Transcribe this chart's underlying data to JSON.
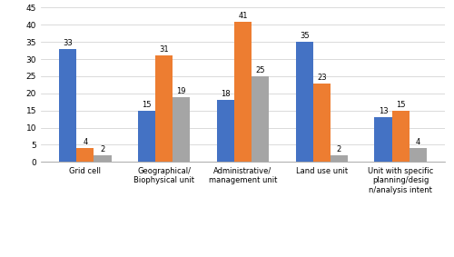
{
  "categories": [
    "Grid cell",
    "Geographical/\nBiophysical unit",
    "Administrative/\nmanagement unit",
    "Land use unit",
    "Unit with specific\nplanning/desig\nn/analysis intent"
  ],
  "minimal_unit": [
    33,
    15,
    18,
    35,
    13
  ],
  "aggregated_unit": [
    4,
    31,
    41,
    23,
    15
  ],
  "aggregated_not_same": [
    2,
    19,
    25,
    2,
    4
  ],
  "colors": {
    "minimal": "#4472C4",
    "aggregated": "#ED7D31",
    "not_same": "#A5A5A5"
  },
  "ylim": [
    0,
    45
  ],
  "yticks": [
    0,
    5,
    10,
    15,
    20,
    25,
    30,
    35,
    40,
    45
  ],
  "bar_width": 0.22
}
